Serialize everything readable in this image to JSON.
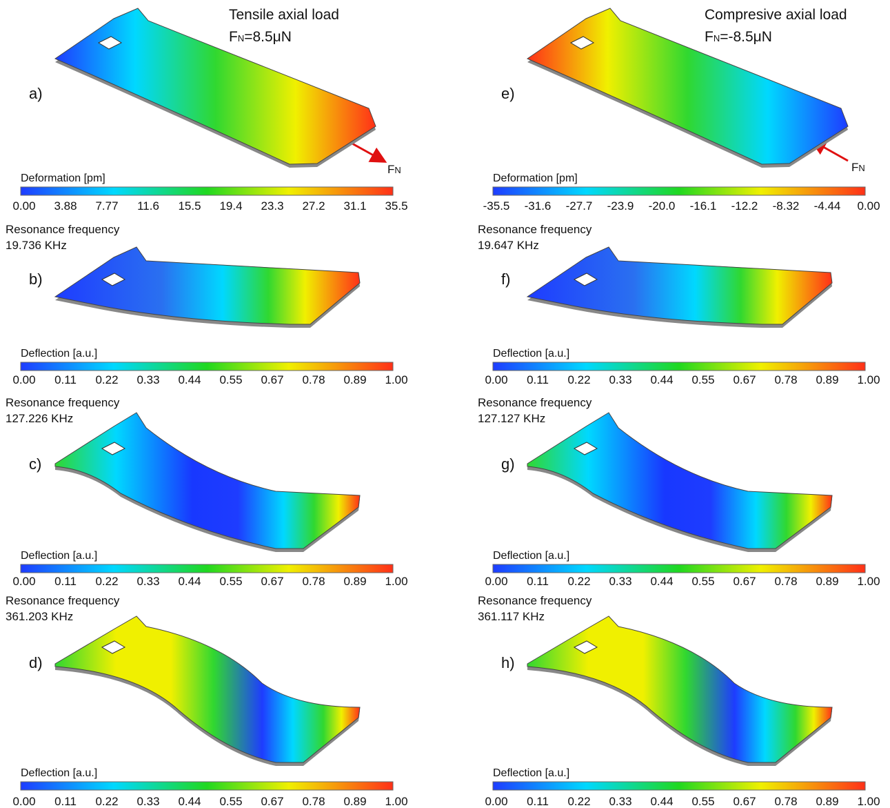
{
  "columns": [
    {
      "heading": {
        "title": "Tensile axial load",
        "force": {
          "symbol": "F",
          "subscript": "N",
          "value": "=8.5μN"
        }
      },
      "arrow_label": {
        "symbol": "F",
        "subscript": "N"
      },
      "panels": [
        {
          "label": "a)",
          "colorbar": {
            "title": "Deformation [pm]",
            "ticks": [
              "0.00",
              "3.88",
              "7.77",
              "11.6",
              "15.5",
              "19.4",
              "23.3",
              "27.2",
              "31.1",
              "35.5"
            ]
          }
        },
        {
          "label": "b)",
          "resonance": {
            "label": "Resonance frequency",
            "value": "19.736 KHz"
          },
          "colorbar": {
            "title": "Deflection [a.u.]",
            "ticks": [
              "0.00",
              "0.11",
              "0.22",
              "0.33",
              "0.44",
              "0.55",
              "0.67",
              "0.78",
              "0.89",
              "1.00"
            ]
          }
        },
        {
          "label": "c)",
          "resonance": {
            "label": "Resonance frequency",
            "value": "127.226 KHz"
          },
          "colorbar": {
            "title": "Deflection [a.u.]",
            "ticks": [
              "0.00",
              "0.11",
              "0.22",
              "0.33",
              "0.44",
              "0.55",
              "0.67",
              "0.78",
              "0.89",
              "1.00"
            ]
          }
        },
        {
          "label": "d)",
          "resonance": {
            "label": "Resonance frequency",
            "value": "361.203 KHz"
          },
          "colorbar": {
            "title": "Deflection [a.u.]",
            "ticks": [
              "0.00",
              "0.11",
              "0.22",
              "0.33",
              "0.44",
              "0.55",
              "0.67",
              "0.78",
              "0.89",
              "1.00"
            ]
          }
        }
      ]
    },
    {
      "heading": {
        "title": "Compresive axial load",
        "force": {
          "symbol": "F",
          "subscript": "N",
          "value": "=-8.5μN"
        }
      },
      "arrow_label": {
        "symbol": "F",
        "subscript": "N"
      },
      "panels": [
        {
          "label": "e)",
          "colorbar": {
            "title": "Deformation [pm]",
            "ticks": [
              "-35.5",
              "-31.6",
              "-27.7",
              "-23.9",
              "-20.0",
              "-16.1",
              "-12.2",
              "-8.32",
              "-4.44",
              "0.00"
            ]
          }
        },
        {
          "label": "f)",
          "resonance": {
            "label": "Resonance frequency",
            "value": "19.647 KHz"
          },
          "colorbar": {
            "title": "Deflection [a.u.]",
            "ticks": [
              "0.00",
              "0.11",
              "0.22",
              "0.33",
              "0.44",
              "0.55",
              "0.67",
              "0.78",
              "0.89",
              "1.00"
            ]
          }
        },
        {
          "label": "g)",
          "resonance": {
            "label": "Resonance frequency",
            "value": "127.127 KHz"
          },
          "colorbar": {
            "title": "Deflection [a.u.]",
            "ticks": [
              "0.00",
              "0.11",
              "0.22",
              "0.33",
              "0.44",
              "0.55",
              "0.67",
              "0.78",
              "0.89",
              "1.00"
            ]
          }
        },
        {
          "label": "h)",
          "resonance": {
            "label": "Resonance frequency",
            "value": "361.117 KHz"
          },
          "colorbar": {
            "title": "Deflection [a.u.]",
            "ticks": [
              "0.00",
              "0.11",
              "0.22",
              "0.33",
              "0.44",
              "0.55",
              "0.67",
              "0.78",
              "0.89",
              "1.00"
            ]
          }
        }
      ]
    }
  ]
}
